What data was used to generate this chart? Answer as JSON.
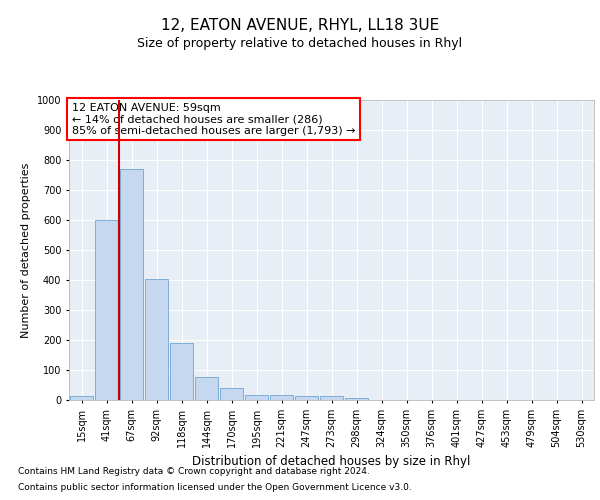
{
  "title": "12, EATON AVENUE, RHYL, LL18 3UE",
  "subtitle": "Size of property relative to detached houses in Rhyl",
  "xlabel": "Distribution of detached houses by size in Rhyl",
  "ylabel": "Number of detached properties",
  "categories": [
    "15sqm",
    "41sqm",
    "67sqm",
    "92sqm",
    "118sqm",
    "144sqm",
    "170sqm",
    "195sqm",
    "221sqm",
    "247sqm",
    "273sqm",
    "298sqm",
    "324sqm",
    "350sqm",
    "376sqm",
    "401sqm",
    "427sqm",
    "453sqm",
    "479sqm",
    "504sqm",
    "530sqm"
  ],
  "values": [
    15,
    600,
    770,
    405,
    190,
    78,
    40,
    18,
    18,
    13,
    15,
    8,
    0,
    0,
    0,
    0,
    0,
    0,
    0,
    0,
    0
  ],
  "bar_color": "#c5d8ef",
  "bar_edge_color": "#6ea6d0",
  "vline_x": 1.5,
  "vline_color": "#cc0000",
  "annotation_text": "12 EATON AVENUE: 59sqm\n← 14% of detached houses are smaller (286)\n85% of semi-detached houses are larger (1,793) →",
  "ylim": [
    0,
    1000
  ],
  "yticks": [
    0,
    100,
    200,
    300,
    400,
    500,
    600,
    700,
    800,
    900,
    1000
  ],
  "background_color": "#e8eef5",
  "footer_line1": "Contains HM Land Registry data © Crown copyright and database right 2024.",
  "footer_line2": "Contains public sector information licensed under the Open Government Licence v3.0.",
  "title_fontsize": 11,
  "subtitle_fontsize": 9,
  "tick_fontsize": 7,
  "ylabel_fontsize": 8,
  "xlabel_fontsize": 8.5,
  "annotation_fontsize": 8,
  "footer_fontsize": 6.5
}
